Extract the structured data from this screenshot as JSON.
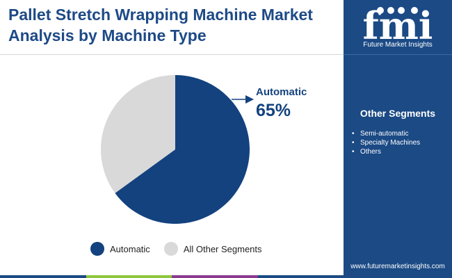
{
  "header": {
    "title_line1": "Pallet Stretch Wrapping Machine Market",
    "title_line2": "Analysis by Machine Type"
  },
  "chart_data": {
    "type": "pie",
    "title": "Pallet Stretch Wrapping Machine Market Analysis by Machine Type",
    "series": [
      {
        "name": "Automatic",
        "value": 65,
        "color": "#13427f"
      },
      {
        "name": "All Other Segments",
        "value": 35,
        "color": "#d9d9d9"
      }
    ],
    "annotation": {
      "label": "Automatic",
      "value_label": "65%"
    },
    "legend_position": "bottom"
  },
  "sidebar": {
    "logo_text": "fmi",
    "logo_caption": "Future Market Insights",
    "other_segments_title": "Other Segments",
    "other_segments": [
      "Semi-automatic",
      "Specialty Machines",
      "Others"
    ],
    "website": "www.futuremarketinsights.com"
  },
  "colors": {
    "title": "#1d4a86",
    "sidebar_bg": "#1b4a85",
    "bottom_bar": [
      "#1b4a85",
      "#8cc63f",
      "#8b3a8f",
      "#1b4a85"
    ]
  }
}
